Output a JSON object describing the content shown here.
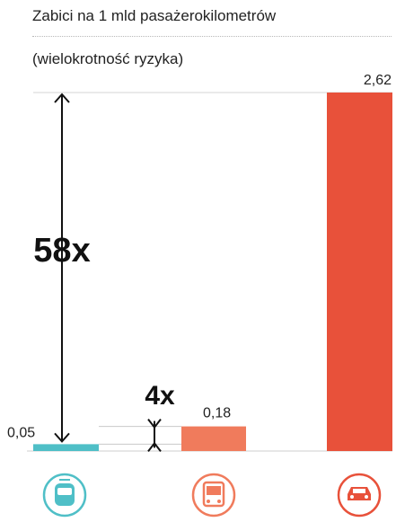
{
  "header": {
    "title": "Zabici na 1 mld pasażerokilometrów",
    "subtitle": "(wielokrotność ryzyka)"
  },
  "chart_data": {
    "type": "bar",
    "title": "Zabici na 1 mld pasażerokilometrów",
    "subtitle": "(wielokrotność ryzyka)",
    "categories": [
      "tram",
      "bus",
      "car"
    ],
    "values": [
      0.05,
      0.18,
      2.62
    ],
    "value_labels": [
      "0,05",
      "0,18",
      "2,62"
    ],
    "colors": [
      "#4fbfc7",
      "#f07b5c",
      "#e8513a"
    ],
    "ylim": [
      0,
      2.62
    ],
    "grid": false,
    "annotations": [
      {
        "label": "58x",
        "from": "tram",
        "to": "car"
      },
      {
        "label": "4x",
        "from": "tram",
        "to": "bus"
      }
    ],
    "icons": [
      "tram-icon",
      "bus-icon",
      "car-icon"
    ]
  }
}
